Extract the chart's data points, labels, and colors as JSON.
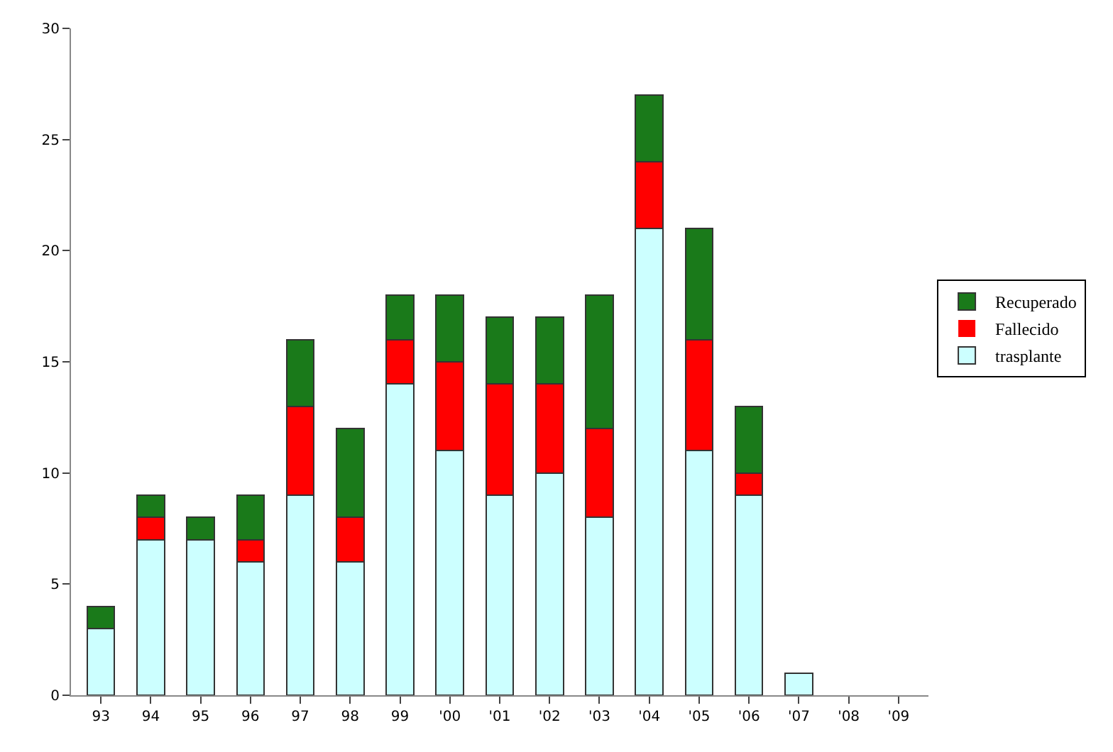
{
  "chart_data": {
    "type": "bar",
    "stacked": true,
    "categories": [
      "93",
      "94",
      "95",
      "96",
      "97",
      "98",
      "99",
      "'00",
      "'01",
      "'02",
      "'03",
      "'04",
      "'05",
      "'06",
      "'07",
      "'08",
      "'09"
    ],
    "series": [
      {
        "name": "trasplante",
        "color": "#ccffff",
        "values": [
          3,
          7,
          7,
          6,
          9,
          6,
          14,
          11,
          9,
          10,
          8,
          21,
          11,
          9,
          1,
          0,
          0
        ]
      },
      {
        "name": "Fallecido",
        "color": "#ff0000",
        "values": [
          0,
          1,
          0,
          1,
          4,
          2,
          2,
          4,
          5,
          4,
          4,
          3,
          5,
          1,
          0,
          0,
          0
        ]
      },
      {
        "name": "Recuperado",
        "color": "#1a7a1a",
        "values": [
          1,
          1,
          1,
          2,
          3,
          4,
          2,
          3,
          3,
          3,
          6,
          3,
          5,
          3,
          0,
          0,
          0
        ]
      }
    ],
    "ylim": [
      0,
      30
    ],
    "yticks": [
      0,
      5,
      10,
      15,
      20,
      25,
      30
    ],
    "legend": "right"
  }
}
